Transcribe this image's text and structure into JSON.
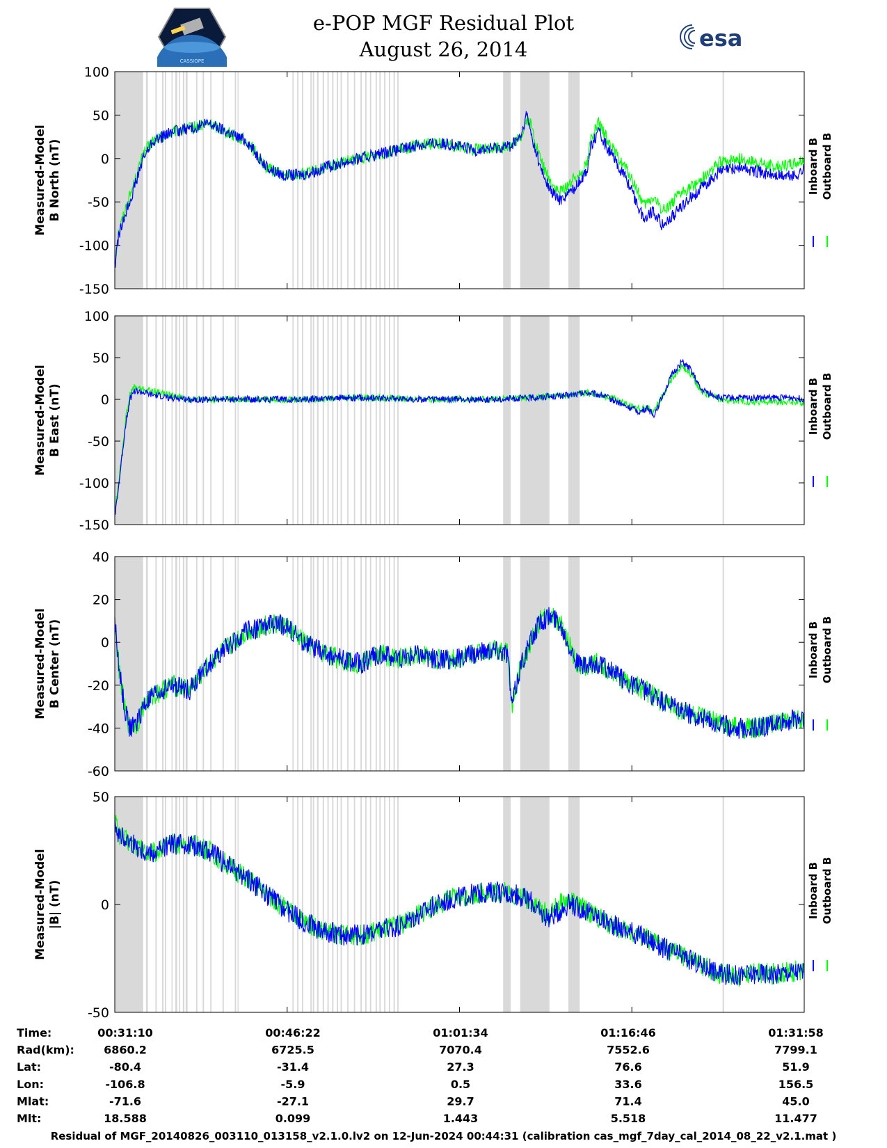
{
  "header": {
    "title": "e-POP MGF Residual Plot",
    "date": "August 26, 2014",
    "logo_left_label": "CASSIOPE",
    "logo_right_label": "esa"
  },
  "chart_data": [
    {
      "type": "line",
      "ylabel": [
        "Measured-Model",
        "B North (nT)"
      ],
      "ylim": [
        -150,
        100
      ],
      "yticks": [
        -150,
        -100,
        -50,
        0,
        50,
        100
      ],
      "xlim": [
        0,
        3648
      ],
      "xticks": [
        0,
        912,
        1824,
        2736,
        3648
      ],
      "legend": [
        "Inboard B",
        "Outboard B"
      ],
      "legend_position": "right",
      "noise": 7,
      "series": [
        {
          "name": "Outboard B",
          "color": "#00ff00",
          "x": [
            0,
            20,
            60,
            100,
            150,
            200,
            300,
            400,
            500,
            600,
            700,
            800,
            900,
            1000,
            1100,
            1200,
            1300,
            1400,
            1500,
            1600,
            1700,
            1800,
            1900,
            2000,
            2100,
            2150,
            2180,
            2200,
            2250,
            2300,
            2350,
            2400,
            2450,
            2500,
            2520,
            2560,
            2600,
            2650,
            2700,
            2750,
            2800,
            2850,
            2900,
            3000,
            3100,
            3200,
            3300,
            3400,
            3500,
            3600,
            3648
          ],
          "y": [
            -120,
            -85,
            -55,
            -30,
            5,
            20,
            30,
            35,
            40,
            30,
            20,
            -10,
            -20,
            -18,
            -12,
            -5,
            0,
            5,
            10,
            15,
            18,
            15,
            10,
            12,
            15,
            25,
            45,
            40,
            0,
            -25,
            -40,
            -30,
            -20,
            -5,
            25,
            40,
            25,
            5,
            -10,
            -30,
            -55,
            -45,
            -60,
            -40,
            -25,
            -5,
            0,
            -5,
            -10,
            -5,
            0
          ]
        },
        {
          "name": "Inboard B",
          "color": "#0000ff",
          "x": [
            0,
            20,
            60,
            100,
            150,
            200,
            300,
            400,
            500,
            600,
            700,
            800,
            900,
            1000,
            1100,
            1200,
            1300,
            1400,
            1500,
            1600,
            1700,
            1800,
            1900,
            2000,
            2100,
            2150,
            2180,
            2200,
            2250,
            2300,
            2350,
            2400,
            2450,
            2500,
            2520,
            2560,
            2600,
            2650,
            2700,
            2750,
            2800,
            2850,
            2900,
            3000,
            3100,
            3200,
            3300,
            3400,
            3500,
            3600,
            3648
          ],
          "y": [
            -125,
            -90,
            -60,
            -35,
            0,
            20,
            30,
            35,
            40,
            30,
            20,
            -10,
            -20,
            -18,
            -12,
            -5,
            0,
            5,
            10,
            15,
            18,
            15,
            10,
            12,
            15,
            25,
            50,
            30,
            -10,
            -35,
            -48,
            -40,
            -30,
            -12,
            15,
            30,
            15,
            -5,
            -20,
            -45,
            -70,
            -60,
            -78,
            -55,
            -35,
            -15,
            -10,
            -15,
            -20,
            -20,
            -12
          ]
        }
      ]
    },
    {
      "type": "line",
      "ylabel": [
        "Measured-Model",
        "B East (nT)"
      ],
      "ylim": [
        -150,
        100
      ],
      "yticks": [
        -150,
        -100,
        -50,
        0,
        50,
        100
      ],
      "xlim": [
        0,
        3648
      ],
      "xticks": [
        0,
        912,
        1824,
        2736,
        3648
      ],
      "legend": [
        "Inboard B",
        "Outboard B"
      ],
      "legend_position": "right",
      "noise": 4,
      "series": [
        {
          "name": "Outboard B",
          "color": "#00ff00",
          "x": [
            0,
            20,
            40,
            60,
            80,
            100,
            150,
            200,
            300,
            400,
            500,
            600,
            800,
            1000,
            1200,
            1400,
            1600,
            1800,
            2000,
            2200,
            2400,
            2500,
            2580,
            2650,
            2700,
            2780,
            2820,
            2850,
            2900,
            2950,
            3000,
            3050,
            3100,
            3200,
            3300,
            3400,
            3500,
            3600,
            3648
          ],
          "y": [
            -135,
            -100,
            -60,
            -20,
            5,
            15,
            12,
            10,
            5,
            0,
            0,
            0,
            0,
            0,
            2,
            2,
            0,
            0,
            0,
            2,
            5,
            8,
            5,
            0,
            -5,
            -12,
            -8,
            -15,
            5,
            25,
            40,
            30,
            10,
            0,
            -2,
            -3,
            -3,
            -3,
            -5
          ]
        },
        {
          "name": "Inboard B",
          "color": "#0000ff",
          "x": [
            0,
            20,
            40,
            60,
            80,
            100,
            150,
            200,
            300,
            400,
            500,
            600,
            800,
            1000,
            1200,
            1400,
            1600,
            1800,
            2000,
            2200,
            2400,
            2500,
            2580,
            2650,
            2700,
            2780,
            2820,
            2850,
            2900,
            2950,
            3000,
            3050,
            3100,
            3200,
            3300,
            3400,
            3500,
            3600,
            3648
          ],
          "y": [
            -140,
            -105,
            -65,
            -25,
            0,
            10,
            8,
            5,
            2,
            0,
            0,
            0,
            0,
            0,
            2,
            2,
            0,
            0,
            0,
            2,
            5,
            8,
            5,
            -2,
            -8,
            -15,
            -10,
            -20,
            5,
            30,
            45,
            35,
            12,
            2,
            2,
            2,
            2,
            2,
            0
          ]
        }
      ]
    },
    {
      "type": "line",
      "ylabel": [
        "Measured-Model",
        "B Center (nT)"
      ],
      "ylim": [
        -60,
        40
      ],
      "yticks": [
        -60,
        -40,
        -20,
        0,
        20,
        40
      ],
      "xlim": [
        0,
        3648
      ],
      "xticks": [
        0,
        912,
        1824,
        2736,
        3648
      ],
      "legend": [
        "Inboard B",
        "Outboard B"
      ],
      "legend_position": "right",
      "noise": 5,
      "series": [
        {
          "name": "Outboard B",
          "color": "#00ff00",
          "x": [
            0,
            20,
            50,
            80,
            120,
            150,
            200,
            300,
            400,
            500,
            600,
            700,
            800,
            900,
            1000,
            1100,
            1200,
            1300,
            1400,
            1500,
            1600,
            1700,
            1800,
            1900,
            2000,
            2080,
            2100,
            2150,
            2200,
            2250,
            2300,
            2350,
            2400,
            2450,
            2500,
            2550,
            2600,
            2700,
            2800,
            2900,
            3000,
            3100,
            3200,
            3300,
            3400,
            3500,
            3600,
            3648
          ],
          "y": [
            8,
            -10,
            -30,
            -40,
            -38,
            -30,
            -25,
            -20,
            -22,
            -10,
            -2,
            5,
            8,
            8,
            0,
            -5,
            -8,
            -10,
            -5,
            -8,
            -5,
            -8,
            -8,
            -5,
            -3,
            -5,
            -30,
            -10,
            0,
            10,
            12,
            10,
            0,
            -10,
            -12,
            -10,
            -12,
            -18,
            -22,
            -28,
            -32,
            -35,
            -38,
            -40,
            -40,
            -38,
            -36,
            -35
          ]
        },
        {
          "name": "Inboard B",
          "color": "#0000ff",
          "x": [
            0,
            20,
            50,
            80,
            120,
            150,
            200,
            300,
            400,
            500,
            600,
            700,
            800,
            900,
            1000,
            1100,
            1200,
            1300,
            1400,
            1500,
            1600,
            1700,
            1800,
            1900,
            2000,
            2080,
            2100,
            2150,
            2200,
            2250,
            2300,
            2350,
            2400,
            2450,
            2500,
            2550,
            2600,
            2700,
            2800,
            2900,
            3000,
            3100,
            3200,
            3300,
            3400,
            3500,
            3600,
            3648
          ],
          "y": [
            10,
            -10,
            -30,
            -40,
            -38,
            -30,
            -25,
            -20,
            -22,
            -10,
            -2,
            5,
            8,
            8,
            0,
            -5,
            -8,
            -10,
            -5,
            -8,
            -5,
            -8,
            -8,
            -5,
            -3,
            -5,
            -30,
            -10,
            0,
            10,
            12,
            10,
            0,
            -10,
            -12,
            -10,
            -12,
            -18,
            -22,
            -28,
            -32,
            -35,
            -38,
            -40,
            -40,
            -38,
            -36,
            -35
          ]
        }
      ]
    },
    {
      "type": "line",
      "ylabel": [
        "Measured-Model",
        "|B| (nT)"
      ],
      "ylim": [
        -50,
        50
      ],
      "yticks": [
        -50,
        0,
        50
      ],
      "xlim": [
        0,
        3648
      ],
      "xticks": [
        0,
        912,
        1824,
        2736,
        3648
      ],
      "legend": [
        "Inboard B",
        "Outboard B"
      ],
      "legend_position": "right",
      "noise": 5,
      "series": [
        {
          "name": "Outboard B",
          "color": "#00ff00",
          "x": [
            0,
            20,
            60,
            100,
            150,
            200,
            300,
            400,
            500,
            600,
            700,
            800,
            900,
            1000,
            1100,
            1200,
            1300,
            1400,
            1500,
            1600,
            1700,
            1800,
            1900,
            2000,
            2100,
            2200,
            2250,
            2300,
            2350,
            2400,
            2500,
            2600,
            2700,
            2800,
            2900,
            3000,
            3100,
            3200,
            3300,
            3400,
            3500,
            3600,
            3648
          ],
          "y": [
            42,
            32,
            30,
            28,
            25,
            24,
            28,
            28,
            25,
            18,
            12,
            5,
            -2,
            -8,
            -12,
            -14,
            -14,
            -12,
            -10,
            -5,
            0,
            3,
            5,
            6,
            5,
            2,
            -2,
            -5,
            0,
            2,
            -3,
            -8,
            -12,
            -15,
            -20,
            -24,
            -28,
            -32,
            -33,
            -32,
            -32,
            -31,
            -31
          ]
        },
        {
          "name": "Inboard B",
          "color": "#0000ff",
          "x": [
            0,
            20,
            60,
            100,
            150,
            200,
            300,
            400,
            500,
            600,
            700,
            800,
            900,
            1000,
            1100,
            1200,
            1300,
            1400,
            1500,
            1600,
            1700,
            1800,
            1900,
            2000,
            2100,
            2200,
            2250,
            2300,
            2350,
            2400,
            2500,
            2600,
            2700,
            2800,
            2900,
            3000,
            3100,
            3200,
            3300,
            3400,
            3500,
            3600,
            3648
          ],
          "y": [
            40,
            32,
            30,
            28,
            25,
            24,
            28,
            28,
            25,
            18,
            12,
            5,
            -2,
            -8,
            -12,
            -14,
            -14,
            -12,
            -10,
            -5,
            0,
            3,
            5,
            6,
            5,
            2,
            -4,
            -6,
            -3,
            0,
            -3,
            -8,
            -12,
            -15,
            -20,
            -24,
            -28,
            -32,
            -33,
            -32,
            -32,
            -31,
            -31
          ]
        }
      ]
    }
  ],
  "gaps": [
    [
      0,
      150
    ],
    [
      165,
      175
    ],
    [
      215,
      222
    ],
    [
      250,
      258
    ],
    [
      265,
      272
    ],
    [
      300,
      306
    ],
    [
      320,
      330
    ],
    [
      340,
      346
    ],
    [
      360,
      368
    ],
    [
      375,
      385
    ],
    [
      430,
      437
    ],
    [
      465,
      472
    ],
    [
      505,
      512
    ],
    [
      570,
      577
    ],
    [
      635,
      642
    ],
    [
      650,
      655
    ],
    [
      940,
      946
    ],
    [
      965,
      972
    ],
    [
      990,
      997
    ],
    [
      1035,
      1042
    ],
    [
      1048,
      1055
    ],
    [
      1070,
      1078
    ],
    [
      1100,
      1107
    ],
    [
      1125,
      1132
    ],
    [
      1150,
      1157
    ],
    [
      1175,
      1182
    ],
    [
      1195,
      1202
    ],
    [
      1230,
      1237
    ],
    [
      1265,
      1272
    ],
    [
      1300,
      1307
    ],
    [
      1325,
      1332
    ],
    [
      1350,
      1357
    ],
    [
      1380,
      1387
    ],
    [
      1400,
      1407
    ],
    [
      1425,
      1432
    ],
    [
      1450,
      1457
    ],
    [
      1475,
      1482
    ],
    [
      1495,
      1502
    ],
    [
      2055,
      2095
    ],
    [
      2145,
      2300
    ],
    [
      2400,
      2460
    ]
  ],
  "gap_color": "#d9d9d9",
  "highlight_line_x": 3220,
  "info_table": {
    "row_labels": [
      "Time:",
      "Rad(km):",
      "Lat:",
      "Lon:",
      "Mlat:",
      "Mlt:"
    ],
    "columns": [
      [
        "00:31:10",
        "6860.2",
        "-80.4",
        "-106.8",
        "-71.6",
        "18.588"
      ],
      [
        "00:46:22",
        "6725.5",
        "-31.4",
        "-5.9",
        "-27.1",
        "0.099"
      ],
      [
        "01:01:34",
        "7070.4",
        "27.3",
        "0.5",
        "29.7",
        "1.443"
      ],
      [
        "01:16:46",
        "7552.6",
        "76.6",
        "33.6",
        "71.4",
        "5.518"
      ],
      [
        "01:31:58",
        "7799.1",
        "51.9",
        "156.5",
        "45.0",
        "11.477"
      ]
    ]
  },
  "footer": "Residual of MGF_20140826_003110_013158_v2.1.0.lv2 on 12-Jun-2024 00:44:31 (calibration cas_mgf_7day_cal_2014_08_22_v2.1.mat )"
}
